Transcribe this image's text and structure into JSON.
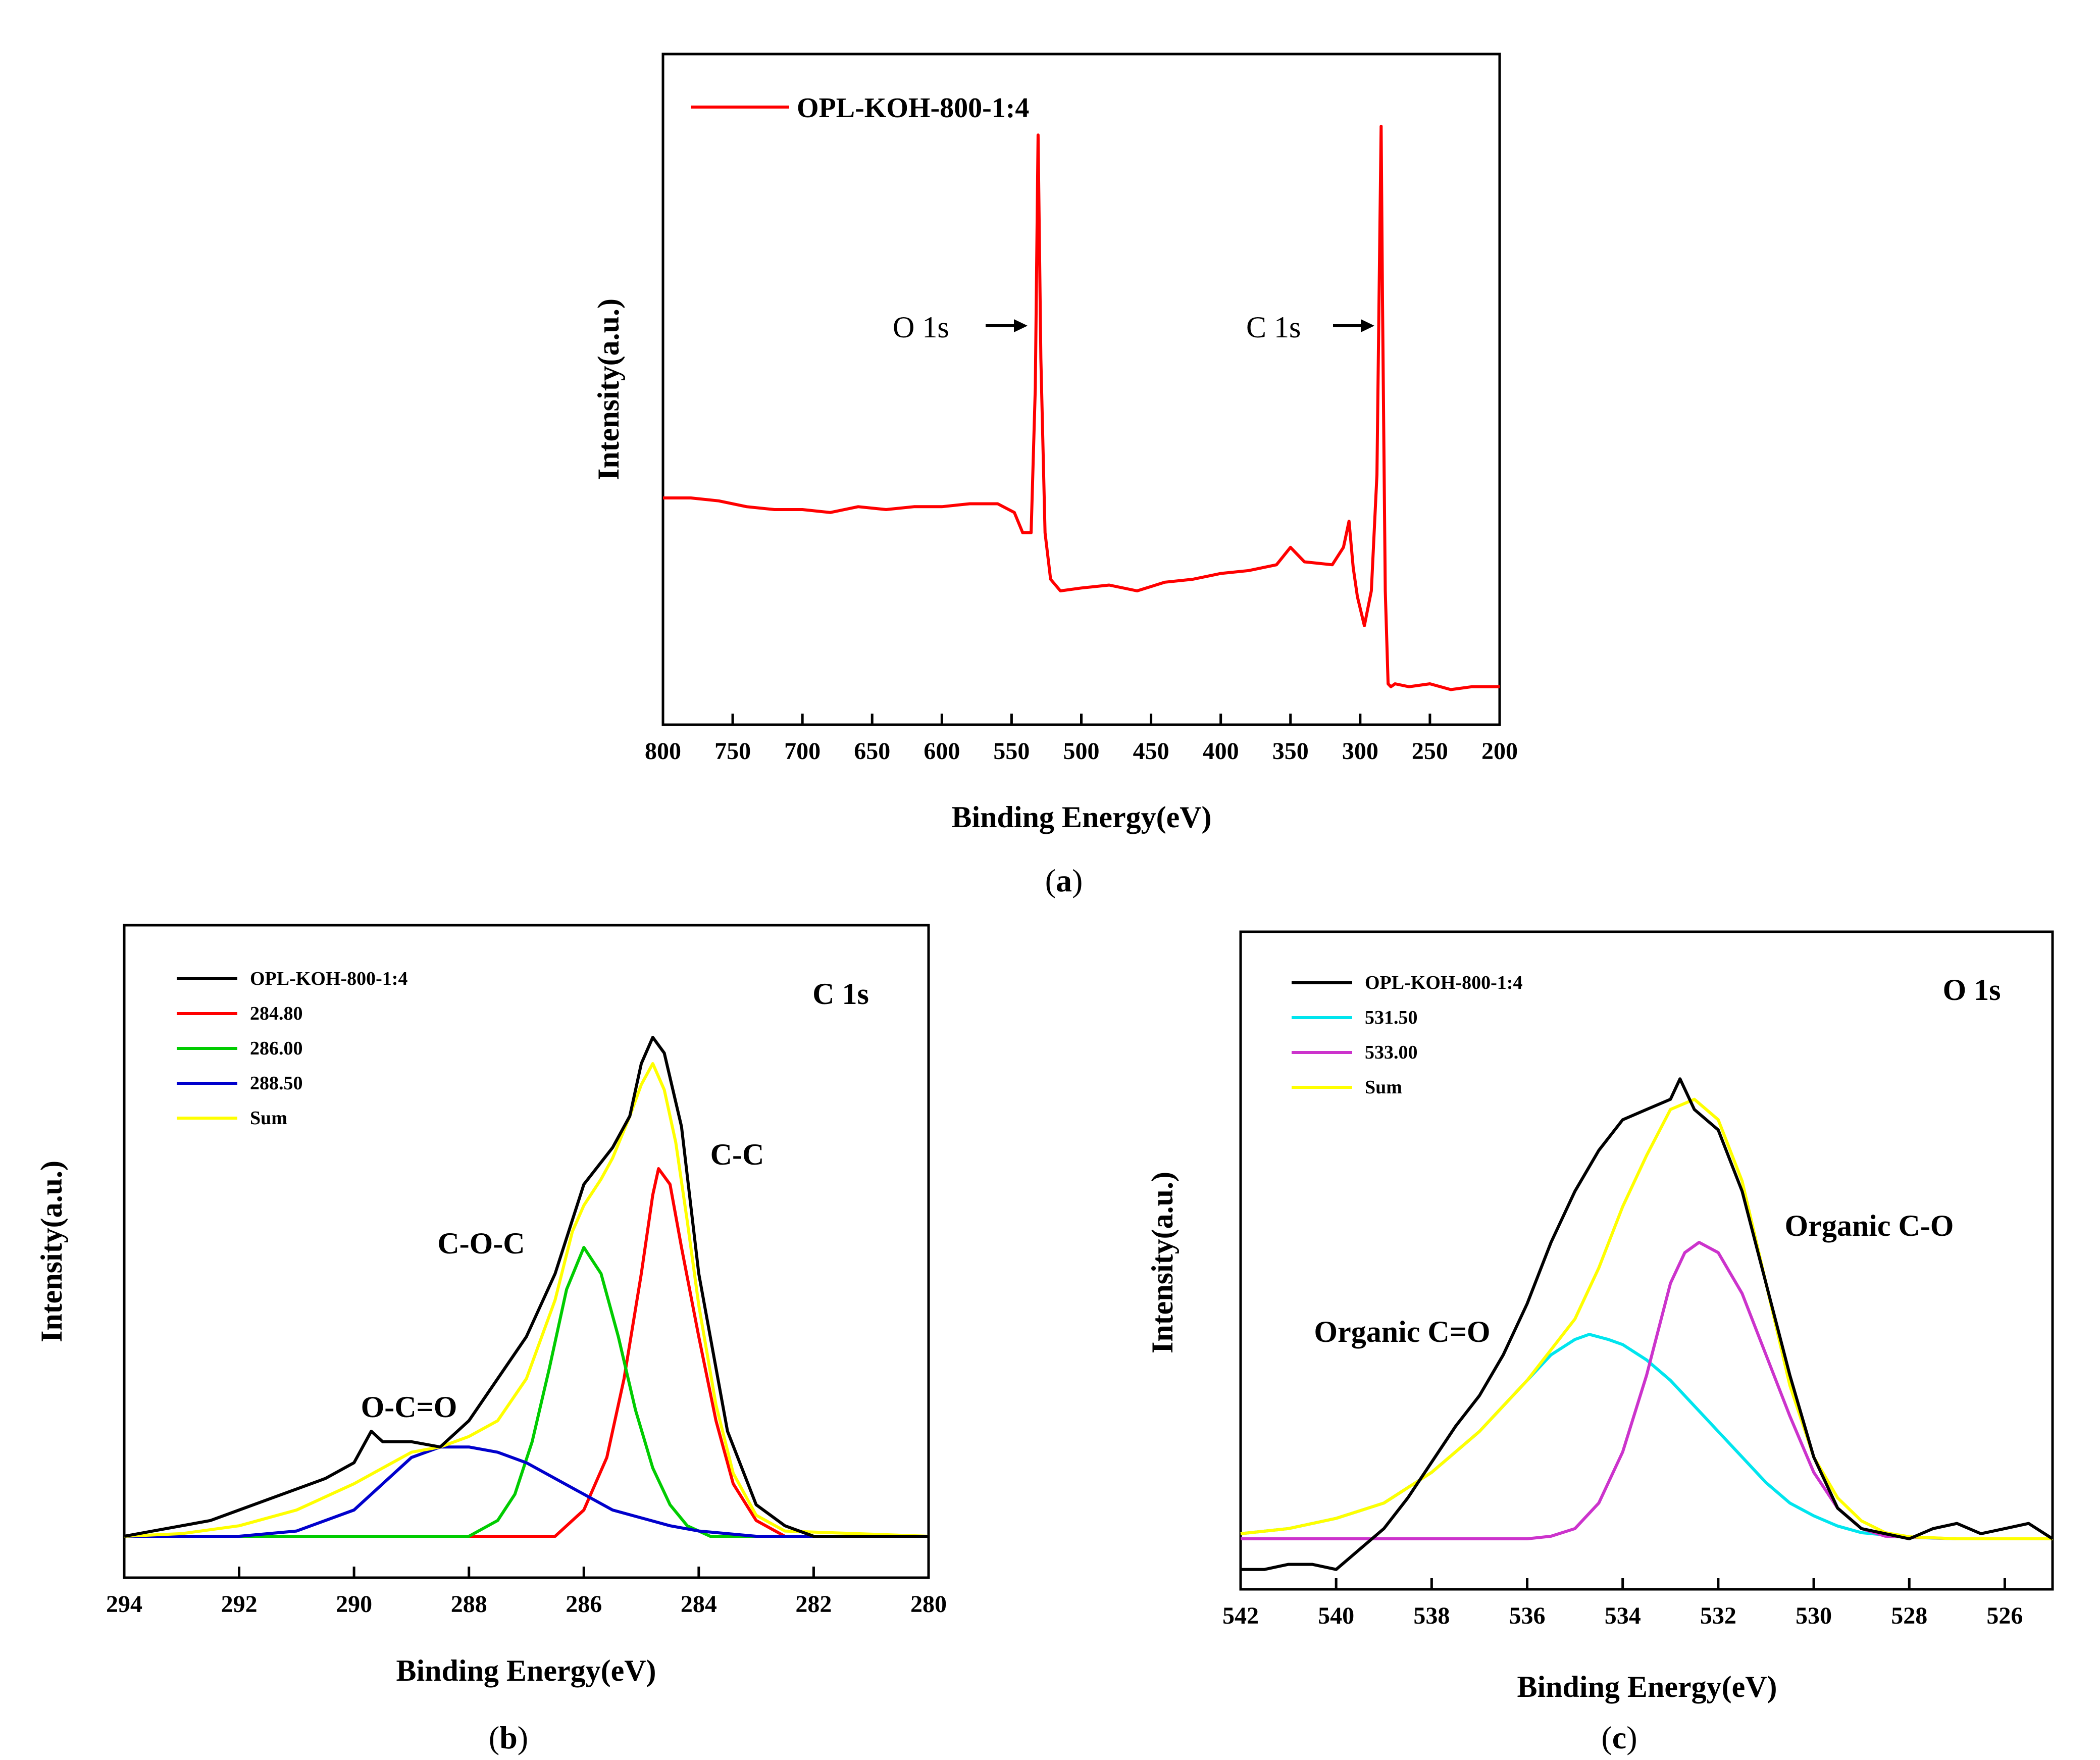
{
  "colors": {
    "survey": "#ff0000",
    "raw": "#000000",
    "c284": "#ff0000",
    "c286": "#00cc00",
    "c288": "#0000cc",
    "o531": "#00e5ee",
    "o533": "#cc33cc",
    "sum": "#ffff00"
  },
  "chart_data": [
    {
      "id": "a",
      "type": "line",
      "caption_letter": "a",
      "xlabel": "Binding Energy(eV)",
      "ylabel": "Intensity(a.u.)",
      "xlim": [
        800,
        200
      ],
      "xticks": [
        "800",
        "750",
        "700",
        "650",
        "600",
        "550",
        "500",
        "450",
        "400",
        "350",
        "300",
        "250",
        "200"
      ],
      "legend": [
        "OPL-KOH-800-1:4"
      ],
      "annotations": [
        {
          "text": "O 1s",
          "x": 531,
          "y": 0.62
        },
        {
          "text": "C 1s",
          "x": 285,
          "y": 0.62
        }
      ],
      "series": [
        {
          "name": "OPL-KOH-800-1:4",
          "color": "#ff0000",
          "x": [
            800,
            780,
            760,
            740,
            720,
            700,
            680,
            660,
            640,
            620,
            600,
            580,
            560,
            548,
            542,
            536,
            533,
            531,
            529,
            526,
            522,
            515,
            500,
            480,
            460,
            440,
            420,
            400,
            380,
            360,
            350,
            340,
            320,
            312,
            308,
            305,
            302,
            297,
            292,
            288,
            286,
            285,
            284,
            282,
            280,
            278,
            275,
            265,
            250,
            235,
            220,
            200
          ],
          "y": [
            0.36,
            0.36,
            0.355,
            0.345,
            0.34,
            0.34,
            0.335,
            0.345,
            0.34,
            0.345,
            0.345,
            0.35,
            0.35,
            0.335,
            0.3,
            0.3,
            0.55,
            0.985,
            0.6,
            0.3,
            0.22,
            0.2,
            0.205,
            0.21,
            0.2,
            0.215,
            0.22,
            0.23,
            0.235,
            0.245,
            0.275,
            0.25,
            0.245,
            0.275,
            0.32,
            0.24,
            0.19,
            0.14,
            0.2,
            0.4,
            0.8,
            1.0,
            0.7,
            0.2,
            0.04,
            0.035,
            0.04,
            0.035,
            0.04,
            0.03,
            0.035,
            0.035
          ]
        }
      ]
    },
    {
      "id": "b",
      "type": "line",
      "caption_letter": "b",
      "xlabel": "Binding Energy(eV)",
      "ylabel": "Intensity(a.u.)",
      "xlim": [
        294,
        280
      ],
      "xticks": [
        "294",
        "292",
        "290",
        "288",
        "286",
        "284",
        "282",
        "280"
      ],
      "title_label": "C 1s",
      "legend": [
        "OPL-KOH-800-1:4",
        "284.80",
        "286.00",
        "288.50",
        "Sum"
      ],
      "annotations": [
        {
          "text": "C-C",
          "x": 282.6,
          "y": 0.72
        },
        {
          "text": "C-O-C",
          "x": 286.6,
          "y": 0.54
        },
        {
          "text": "O-C=O",
          "x": 288.8,
          "y": 0.26
        }
      ],
      "series": [
        {
          "name": "OPL-KOH-800-1:4",
          "color": "#000000",
          "x": [
            294,
            293.5,
            293,
            292.5,
            292,
            291.5,
            291,
            290.5,
            290,
            289.7,
            289.5,
            289,
            288.5,
            288,
            287.5,
            287,
            286.5,
            286,
            285.5,
            285.2,
            285,
            284.8,
            284.6,
            284.3,
            284,
            283.5,
            283,
            282.5,
            282,
            281,
            280
          ],
          "y": [
            0.0,
            0.01,
            0.02,
            0.03,
            0.05,
            0.07,
            0.09,
            0.11,
            0.14,
            0.2,
            0.18,
            0.18,
            0.17,
            0.22,
            0.3,
            0.38,
            0.5,
            0.67,
            0.74,
            0.8,
            0.9,
            0.95,
            0.92,
            0.78,
            0.5,
            0.2,
            0.06,
            0.02,
            0.0,
            0.0,
            0.0
          ]
        },
        {
          "name": "284.80",
          "color": "#ff0000",
          "x": [
            294,
            286.5,
            286,
            285.6,
            285.3,
            285,
            284.8,
            284.7,
            284.5,
            284.3,
            284,
            283.7,
            283.4,
            283,
            282.5,
            280
          ],
          "y": [
            0.0,
            0.0,
            0.05,
            0.15,
            0.3,
            0.5,
            0.65,
            0.7,
            0.67,
            0.55,
            0.38,
            0.22,
            0.1,
            0.03,
            0.0,
            0.0
          ]
        },
        {
          "name": "286.00",
          "color": "#00cc00",
          "x": [
            294,
            288,
            287.5,
            287.2,
            286.9,
            286.6,
            286.3,
            286,
            285.7,
            285.4,
            285.1,
            284.8,
            284.5,
            284.2,
            283.8,
            283.2,
            280
          ],
          "y": [
            0.0,
            0.0,
            0.03,
            0.08,
            0.18,
            0.32,
            0.47,
            0.55,
            0.5,
            0.38,
            0.24,
            0.13,
            0.06,
            0.02,
            0.0,
            0.0,
            0.0
          ]
        },
        {
          "name": "288.50",
          "color": "#0000cc",
          "x": [
            294,
            292,
            291,
            290,
            289.5,
            289,
            288.5,
            288,
            287.5,
            287,
            286.5,
            286,
            285.5,
            285,
            284.5,
            284,
            283,
            282,
            280
          ],
          "y": [
            0.0,
            0.0,
            0.01,
            0.05,
            0.1,
            0.15,
            0.17,
            0.17,
            0.16,
            0.14,
            0.11,
            0.08,
            0.05,
            0.035,
            0.02,
            0.01,
            0.0,
            0.0,
            0.0
          ]
        },
        {
          "name": "Sum",
          "color": "#ffff00",
          "x": [
            294,
            293,
            292,
            291,
            290,
            289.5,
            289,
            288.5,
            288,
            287.5,
            287,
            286.5,
            286.2,
            286,
            285.7,
            285.5,
            285.2,
            285,
            284.8,
            284.6,
            284.4,
            284.2,
            284,
            283.7,
            283.4,
            283,
            282.5,
            280
          ],
          "y": [
            0.0,
            0.005,
            0.02,
            0.05,
            0.1,
            0.13,
            0.16,
            0.17,
            0.19,
            0.22,
            0.3,
            0.45,
            0.58,
            0.63,
            0.68,
            0.72,
            0.8,
            0.86,
            0.9,
            0.85,
            0.75,
            0.6,
            0.44,
            0.25,
            0.12,
            0.04,
            0.01,
            0.0
          ]
        }
      ]
    },
    {
      "id": "c",
      "type": "line",
      "caption_letter": "c",
      "xlabel": "Binding Energy(eV)",
      "ylabel": "Intensity(a.u.)",
      "xlim": [
        542,
        525
      ],
      "xticks": [
        "542",
        "540",
        "538",
        "536",
        "534",
        "532",
        "530",
        "528",
        "526"
      ],
      "title_label": "O 1s",
      "legend": [
        "OPL-KOH-800-1:4",
        "531.50",
        "533.00",
        "Sum"
      ],
      "annotations": [
        {
          "text": "Organic C=O",
          "x": 538.4,
          "y": 0.43
        },
        {
          "text": "Organic C-O",
          "x": 529.5,
          "y": 0.62
        }
      ],
      "series": [
        {
          "name": "OPL-KOH-800-1:4",
          "color": "#000000",
          "x": [
            542,
            541.5,
            541,
            540.5,
            540,
            539.5,
            539,
            538.5,
            538,
            537.5,
            537,
            536.5,
            536,
            535.5,
            535,
            534.5,
            534,
            533.5,
            533,
            532.8,
            532.5,
            532,
            531.5,
            531,
            530.5,
            530,
            529.5,
            529,
            528.5,
            528,
            527.5,
            527,
            526.5,
            526,
            525.5,
            525
          ],
          "y": [
            -0.06,
            -0.06,
            -0.05,
            -0.05,
            -0.06,
            -0.02,
            0.02,
            0.08,
            0.15,
            0.22,
            0.28,
            0.36,
            0.46,
            0.58,
            0.68,
            0.76,
            0.82,
            0.84,
            0.86,
            0.9,
            0.84,
            0.8,
            0.68,
            0.5,
            0.32,
            0.16,
            0.06,
            0.02,
            0.01,
            0.0,
            0.02,
            0.03,
            0.01,
            0.02,
            0.03,
            0.0
          ]
        },
        {
          "name": "531.50",
          "color": "#00e5ee",
          "x": [
            542,
            541,
            540,
            539,
            538,
            537,
            536,
            535.5,
            535,
            534.7,
            534.3,
            534,
            533.5,
            533,
            532.5,
            532,
            531.5,
            531,
            530.5,
            530,
            529.5,
            529,
            528,
            527,
            525
          ],
          "y": [
            0.01,
            0.02,
            0.04,
            0.07,
            0.13,
            0.21,
            0.31,
            0.36,
            0.39,
            0.4,
            0.39,
            0.38,
            0.35,
            0.31,
            0.26,
            0.21,
            0.16,
            0.11,
            0.07,
            0.045,
            0.025,
            0.012,
            0.003,
            0.0,
            0.0
          ]
        },
        {
          "name": "533.00",
          "color": "#cc33cc",
          "x": [
            542,
            536,
            535.5,
            535,
            534.5,
            534,
            533.5,
            533,
            532.7,
            532.4,
            532,
            531.5,
            531,
            530.5,
            530,
            529.5,
            529,
            528.5,
            527,
            525
          ],
          "y": [
            0.0,
            0.0,
            0.005,
            0.02,
            0.07,
            0.17,
            0.32,
            0.5,
            0.56,
            0.58,
            0.56,
            0.48,
            0.36,
            0.24,
            0.13,
            0.06,
            0.02,
            0.005,
            0.0,
            0.0
          ]
        },
        {
          "name": "Sum",
          "color": "#ffff00",
          "x": [
            542,
            541,
            540,
            539,
            538,
            537,
            536,
            535.5,
            535,
            534.5,
            534,
            533.5,
            533,
            532.5,
            532,
            531.5,
            531,
            530.5,
            530,
            529.5,
            529,
            528.5,
            528,
            527,
            525
          ],
          "y": [
            0.01,
            0.02,
            0.04,
            0.07,
            0.13,
            0.21,
            0.31,
            0.37,
            0.43,
            0.53,
            0.65,
            0.75,
            0.84,
            0.86,
            0.82,
            0.7,
            0.5,
            0.3,
            0.16,
            0.08,
            0.035,
            0.012,
            0.004,
            0.0,
            0.0
          ]
        }
      ]
    }
  ]
}
